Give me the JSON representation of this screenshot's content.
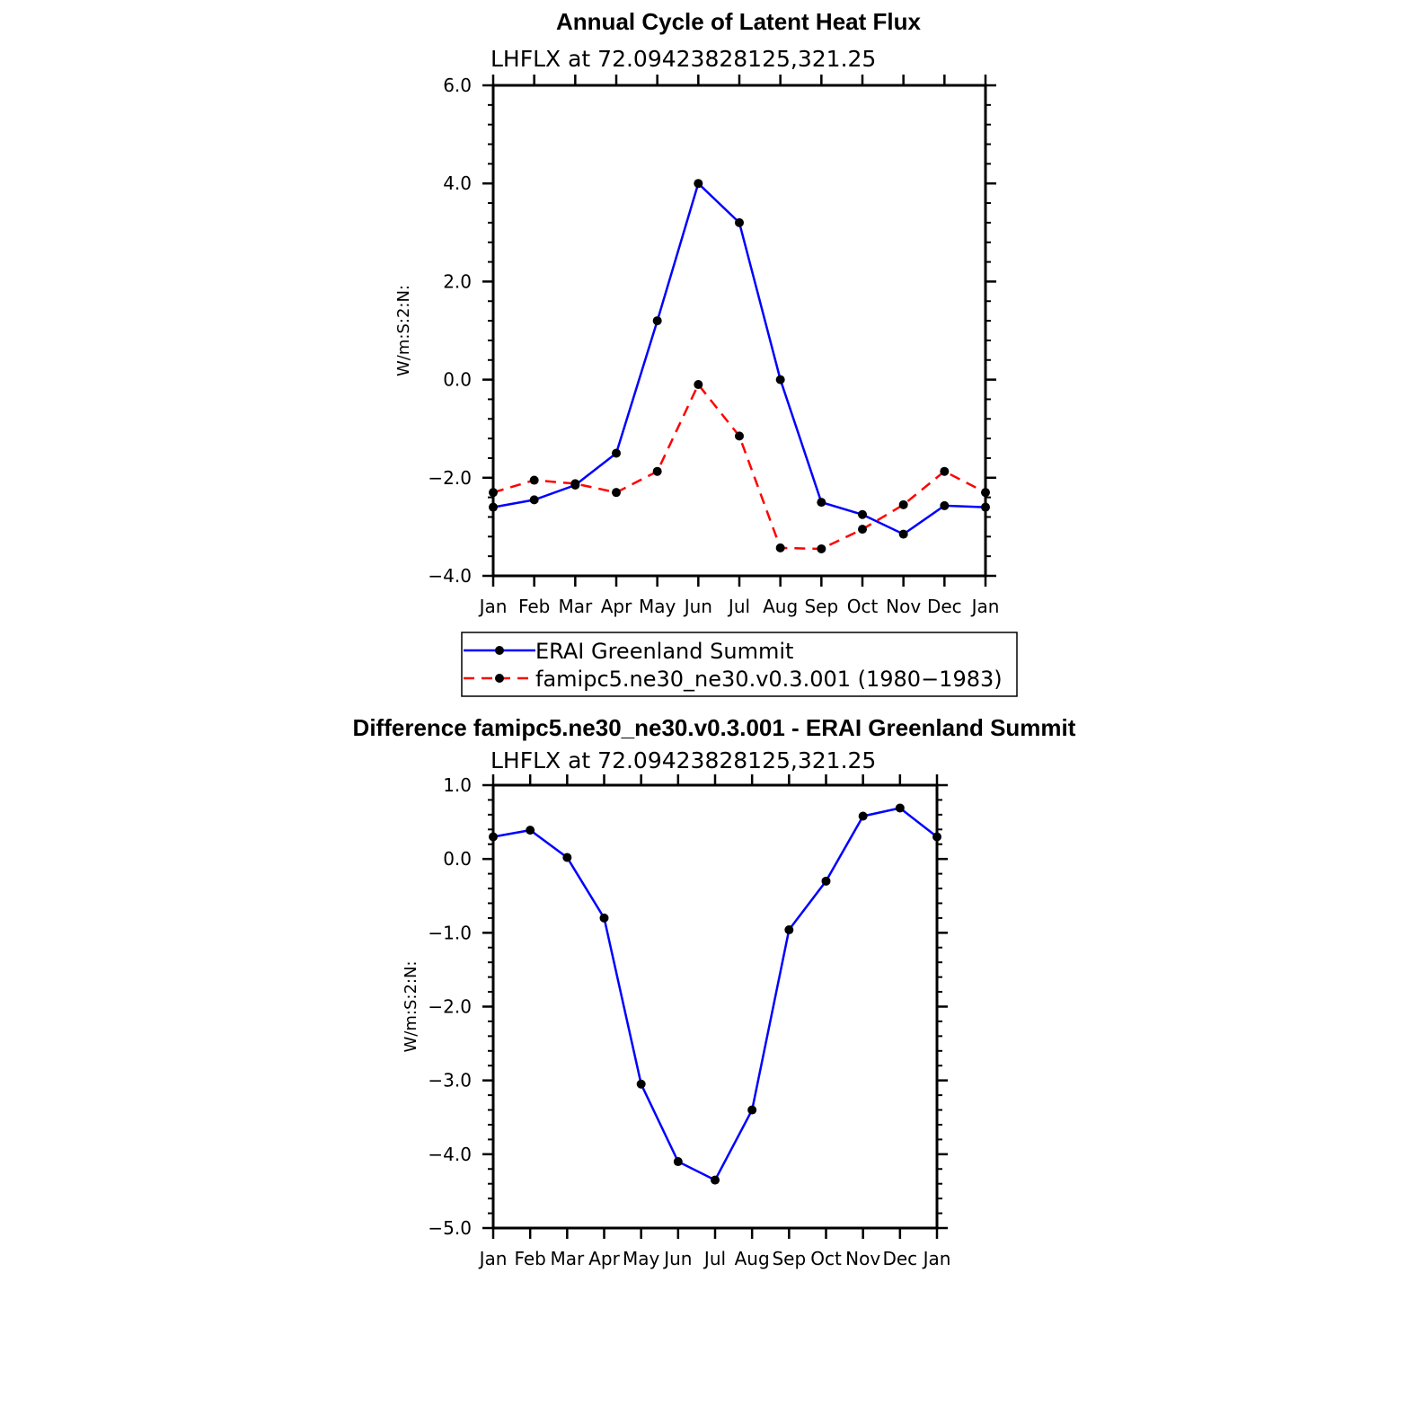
{
  "chart_data": [
    {
      "type": "line",
      "title": "Annual Cycle of Latent Heat Flux",
      "subtitle": "LHFLX at 72.09423828125,321.25",
      "ylabel": "W/m:S:2:N:",
      "xlabel": "",
      "categories": [
        "Jan",
        "Feb",
        "Mar",
        "Apr",
        "May",
        "Jun",
        "Jul",
        "Aug",
        "Sep",
        "Oct",
        "Nov",
        "Dec",
        "Jan"
      ],
      "ylim": [
        -4.0,
        6.0
      ],
      "yticks": [
        -4.0,
        -2.0,
        0.0,
        2.0,
        4.0,
        6.0
      ],
      "ytick_labels": [
        "−4.0",
        "−2.0",
        "0.0",
        "2.0",
        "4.0",
        "6.0"
      ],
      "series": [
        {
          "name": "ERAI Greenland Summit",
          "color": "#0000ff",
          "dash": "solid",
          "values": [
            -2.6,
            -2.45,
            -2.15,
            -1.5,
            1.2,
            4.0,
            3.2,
            0.0,
            -2.5,
            -2.75,
            -3.15,
            -2.57,
            -2.6
          ]
        },
        {
          "name": "famipc5.ne30_ne30.v0.3.001 (1980−1983)",
          "color": "#ff0000",
          "dash": "dashed",
          "values": [
            -2.3,
            -2.05,
            -2.12,
            -2.3,
            -1.87,
            -0.1,
            -1.15,
            -3.43,
            -3.45,
            -3.05,
            -2.55,
            -1.87,
            -2.3
          ]
        }
      ],
      "legend_position": "below"
    },
    {
      "type": "line",
      "title": "Difference famipc5.ne30_ne30.v0.3.001 - ERAI Greenland Summit",
      "subtitle": "LHFLX at 72.09423828125,321.25",
      "ylabel": "W/m:S:2:N:",
      "xlabel": "",
      "categories": [
        "Jan",
        "Feb",
        "Mar",
        "Apr",
        "May",
        "Jun",
        "Jul",
        "Aug",
        "Sep",
        "Oct",
        "Nov",
        "Dec",
        "Jan"
      ],
      "ylim": [
        -5.0,
        1.0
      ],
      "yticks": [
        -5.0,
        -4.0,
        -3.0,
        -2.0,
        -1.0,
        0.0,
        1.0
      ],
      "ytick_labels": [
        "−5.0",
        "−4.0",
        "−3.0",
        "−2.0",
        "−1.0",
        "0.0",
        "1.0"
      ],
      "series": [
        {
          "name": "Difference",
          "color": "#0000ff",
          "dash": "solid",
          "values": [
            0.3,
            0.39,
            0.02,
            -0.8,
            -3.05,
            -4.1,
            -4.35,
            -3.4,
            -0.96,
            -0.3,
            0.58,
            0.69,
            0.3
          ]
        }
      ]
    }
  ]
}
